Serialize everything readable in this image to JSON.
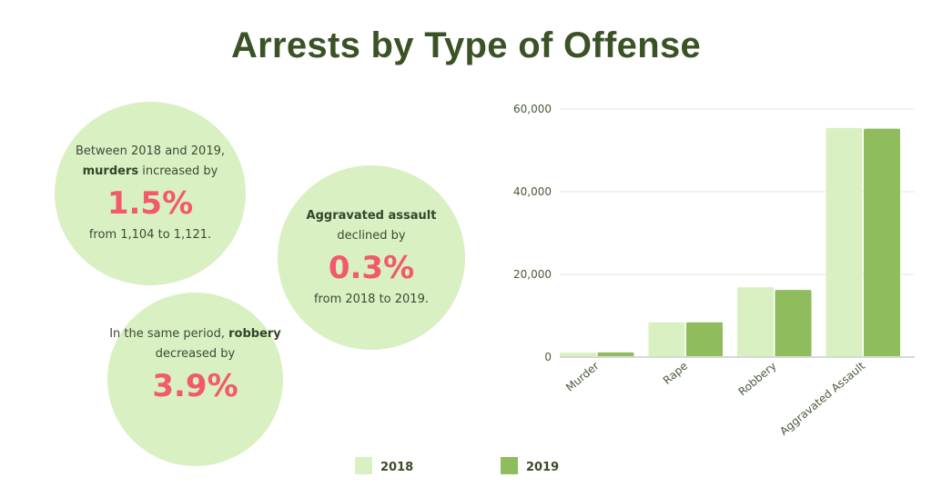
{
  "title": "Arrests by Type of Offense",
  "bubbles": {
    "murder": {
      "line1": "Between 2018 and 2019,",
      "bold": "murders",
      "line2_rest": " increased by",
      "pct": "1.5%",
      "line3": "from 1,104 to 1,121."
    },
    "assault": {
      "bold": "Aggravated assault",
      "line2": "declined by",
      "pct": "0.3%",
      "line3": "from 2018 to 2019."
    },
    "robbery": {
      "line1_pre": "In the same period, ",
      "bold": "robbery",
      "line2": "decreased by",
      "pct": "3.9%"
    }
  },
  "colors": {
    "series_2018": "#d9f0c2",
    "series_2019": "#8fbc5c",
    "accent_pct": "#f2596b",
    "title": "#3a5226"
  },
  "chart_data": {
    "type": "bar",
    "title": "Arrests by Type of Offense",
    "xlabel": "",
    "ylabel": "",
    "categories": [
      "Murder",
      "Rape",
      "Robbery",
      "Aggravated Assault"
    ],
    "series": [
      {
        "name": "2018",
        "values": [
          1104,
          8400,
          16900,
          55400
        ]
      },
      {
        "name": "2019",
        "values": [
          1121,
          8400,
          16250,
          55250
        ]
      }
    ],
    "ylim": [
      0,
      60000
    ],
    "yticks": [
      0,
      20000,
      40000,
      60000
    ],
    "ytick_labels": [
      "0",
      "20,000",
      "40,000",
      "60,000"
    ],
    "grid": true,
    "legend": "bottom"
  }
}
